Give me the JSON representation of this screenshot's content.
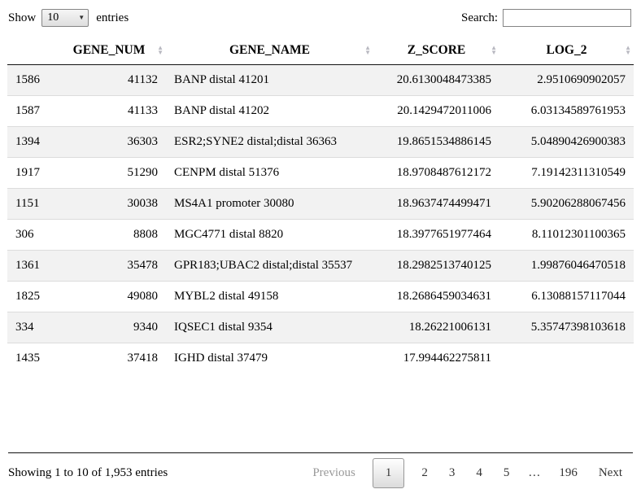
{
  "controls": {
    "show_label": "Show",
    "page_length": "10",
    "entries_label": "entries",
    "search_label": "Search:",
    "search_value": ""
  },
  "icons": {
    "select_arrow": "▼",
    "sort_asc": "▲",
    "sort_desc": "▼"
  },
  "table": {
    "columns": [
      {
        "label": "",
        "sortable": false
      },
      {
        "label": "GENE_NUM",
        "sortable": true
      },
      {
        "label": "GENE_NAME",
        "sortable": true
      },
      {
        "label": "Z_SCORE",
        "sortable": true
      },
      {
        "label": "LOG_2",
        "sortable": true
      }
    ],
    "rows": [
      [
        "1586",
        "41132",
        "BANP distal 41201",
        "20.6130048473385",
        "2.9510690902057"
      ],
      [
        "1587",
        "41133",
        "BANP distal 41202",
        "20.1429472011006",
        "6.03134589761953"
      ],
      [
        "1394",
        "36303",
        "ESR2;SYNE2 distal;distal 36363",
        "19.8651534886145",
        "5.04890426900383"
      ],
      [
        "1917",
        "51290",
        "CENPM distal 51376",
        "18.9708487612172",
        "7.19142311310549"
      ],
      [
        "1151",
        "30038",
        "MS4A1 promoter 30080",
        "18.9637474499471",
        "5.90206288067456"
      ],
      [
        "306",
        "8808",
        "MGC4771 distal 8820",
        "18.3977651977464",
        "8.11012301100365"
      ],
      [
        "1361",
        "35478",
        "GPR183;UBAC2 distal;distal 35537",
        "18.2982513740125",
        "1.99876046470518"
      ],
      [
        "1825",
        "49080",
        "MYBL2 distal 49158",
        "18.2686459034631",
        "6.13088157117044"
      ],
      [
        "334",
        "9340",
        "IQSEC1 distal 9354",
        "18.26221006131",
        "5.35747398103618"
      ],
      [
        "1435",
        "37418",
        "IGHD distal 37479",
        "17.994462275811",
        ""
      ]
    ]
  },
  "footer": {
    "info": "Showing 1 to 10 of 1,953 entries",
    "pagination": {
      "previous_label": "Previous",
      "pages": [
        "1",
        "2",
        "3",
        "4",
        "5",
        "…",
        "196"
      ],
      "current_page": "1",
      "ellipsis": "…",
      "next_label": "Next"
    }
  },
  "colors": {
    "header_rule": "#111111",
    "row_stripe": "#f2f2f2",
    "row_divider": "#dcdcdc",
    "sort_icon": "#b9b9c1",
    "current_page_border": "#989898",
    "current_page_gradient_top": "#ffffff",
    "current_page_gradient_bottom": "#dcdcdc",
    "disabled_text": "#999999"
  }
}
